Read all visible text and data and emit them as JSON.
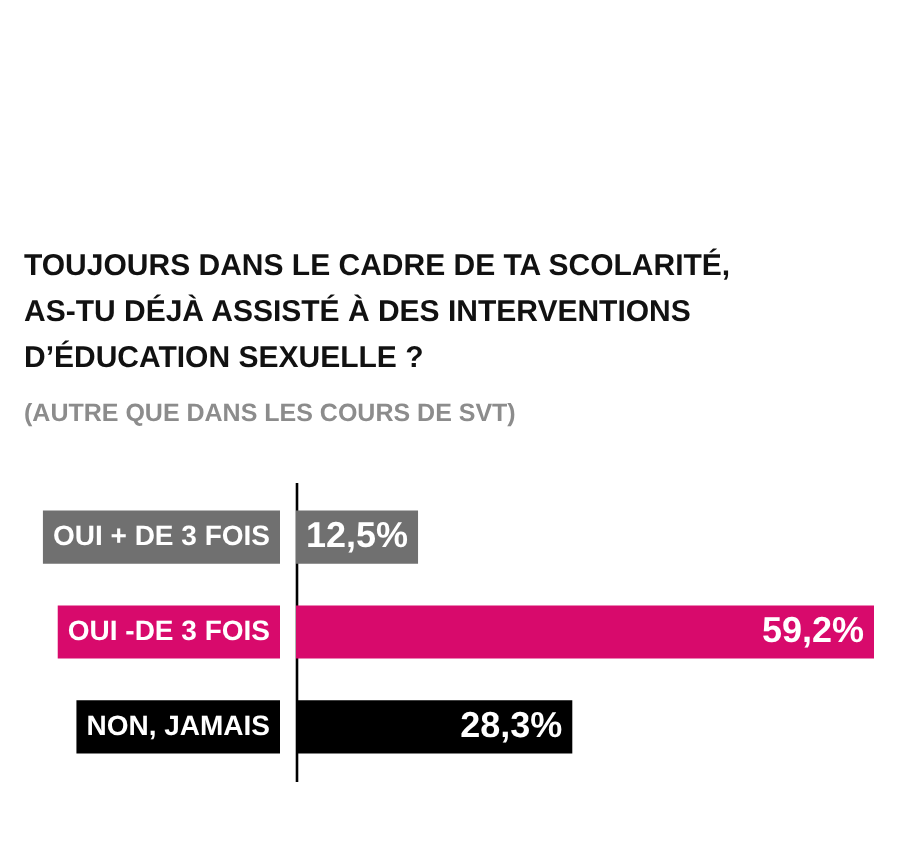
{
  "chart_data": {
    "type": "bar",
    "orientation": "horizontal",
    "title": "TOUJOURS DANS LE CADRE DE TA SCOLARITÉ, AS-TU DÉJÀ ASSISTÉ À DES INTERVENTIONS D’ÉDUCATION SEXUELLE ?",
    "subtitle": "(AUTRE QUE DANS LES COURS DE SVT)",
    "categories": [
      "OUI + DE 3 FOIS",
      "OUI -DE 3 FOIS",
      "NON, JAMAIS"
    ],
    "values": [
      12.5,
      59.2,
      28.3
    ],
    "colors": [
      "#707070",
      "#d80a6c",
      "#000000"
    ],
    "value_labels": [
      "12,5%",
      "59,2%",
      "28,3%"
    ],
    "tick_labels": "y"
  }
}
